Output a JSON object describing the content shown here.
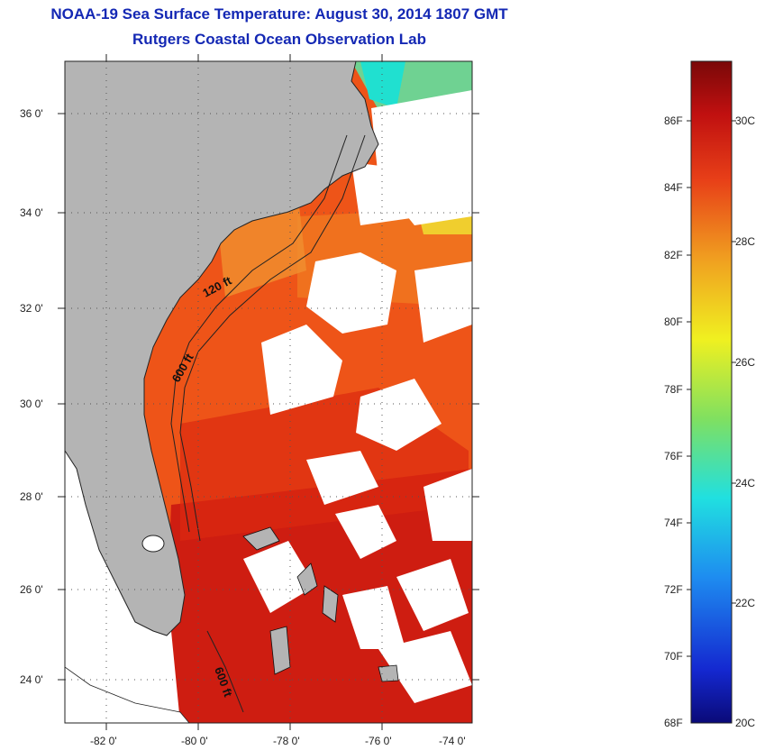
{
  "header": {
    "title": "NOAA-19 Sea Surface Temperature:  August 30, 2014 1807 GMT",
    "subtitle": "Rutgers Coastal Ocean Observation Lab"
  },
  "map": {
    "lat_labels": [
      "36 0'",
      "34 0'",
      "32 0'",
      "30 0'",
      "28 0'",
      "26 0'",
      "24 0'"
    ],
    "lon_labels": [
      "-82 0'",
      "-80 0'",
      "-78 0'",
      "-76 0'",
      "-74 0'"
    ],
    "contour_labels": [
      "120 ft",
      "600 ft",
      "600 ft"
    ],
    "colors": {
      "land": "#b4b4b4",
      "cloud": "#ffffff",
      "warm_dark": "#a01010",
      "warm": "#e03010",
      "orange": "#f08020",
      "yellow": "#f0e020",
      "green": "#60e070",
      "cyan": "#20e0d0"
    }
  },
  "colorbar": {
    "f_labels": [
      "86F",
      "84F",
      "82F",
      "80F",
      "78F",
      "76F",
      "74F",
      "72F",
      "70F",
      "68F"
    ],
    "c_labels": [
      "30C",
      "28C",
      "26C",
      "24C",
      "22C",
      "20C"
    ]
  }
}
